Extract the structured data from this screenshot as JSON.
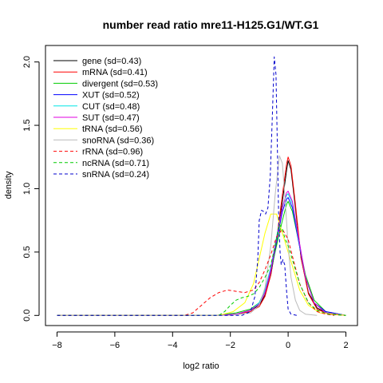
{
  "chart_data": {
    "type": "line",
    "title": "number read ratio mre11-H125.G1/WT.G1",
    "xlabel": "log2 ratio",
    "ylabel": "density",
    "xlim": [
      -8.4,
      2.4
    ],
    "ylim": [
      -0.08,
      2.13
    ],
    "xticks": [
      -8,
      -6,
      -4,
      -2,
      0,
      2
    ],
    "xtick_labels": [
      "−8",
      "−6",
      "−4",
      "−2",
      "0",
      "2"
    ],
    "yticks": [
      0.0,
      0.5,
      1.0,
      1.5,
      2.0
    ],
    "ytick_labels": [
      "0.0",
      "0.5",
      "1.0",
      "1.5",
      "2.0"
    ],
    "grid": false,
    "legend_position": "top-left",
    "series": [
      {
        "name": "gene (sd=0.43)",
        "color": "#000000",
        "dash": "solid",
        "points": [
          [
            -8,
            0
          ],
          [
            -2.5,
            0
          ],
          [
            -1.8,
            0.01
          ],
          [
            -1.3,
            0.04
          ],
          [
            -1.0,
            0.08
          ],
          [
            -0.8,
            0.16
          ],
          [
            -0.6,
            0.32
          ],
          [
            -0.4,
            0.58
          ],
          [
            -0.2,
            0.9
          ],
          [
            -0.05,
            1.15
          ],
          [
            0,
            1.22
          ],
          [
            0.1,
            1.15
          ],
          [
            0.25,
            0.85
          ],
          [
            0.45,
            0.45
          ],
          [
            0.7,
            0.18
          ],
          [
            1.0,
            0.06
          ],
          [
            1.4,
            0.01
          ],
          [
            2,
            0
          ]
        ]
      },
      {
        "name": "mRNA (sd=0.41)",
        "color": "#ff0000",
        "dash": "solid",
        "points": [
          [
            -8,
            0
          ],
          [
            -2.5,
            0
          ],
          [
            -1.8,
            0.01
          ],
          [
            -1.3,
            0.03
          ],
          [
            -1.0,
            0.07
          ],
          [
            -0.8,
            0.15
          ],
          [
            -0.6,
            0.32
          ],
          [
            -0.4,
            0.6
          ],
          [
            -0.2,
            0.95
          ],
          [
            -0.05,
            1.2
          ],
          [
            0,
            1.25
          ],
          [
            0.1,
            1.18
          ],
          [
            0.25,
            0.88
          ],
          [
            0.45,
            0.45
          ],
          [
            0.7,
            0.17
          ],
          [
            1.0,
            0.05
          ],
          [
            1.4,
            0.01
          ],
          [
            2,
            0
          ]
        ]
      },
      {
        "name": "divergent (sd=0.53)",
        "color": "#00cc00",
        "dash": "solid",
        "points": [
          [
            -8,
            0
          ],
          [
            -2.5,
            0
          ],
          [
            -1.8,
            0.02
          ],
          [
            -1.3,
            0.05
          ],
          [
            -1.0,
            0.1
          ],
          [
            -0.8,
            0.2
          ],
          [
            -0.6,
            0.35
          ],
          [
            -0.4,
            0.55
          ],
          [
            -0.2,
            0.75
          ],
          [
            -0.05,
            0.88
          ],
          [
            0,
            0.9
          ],
          [
            0.15,
            0.82
          ],
          [
            0.35,
            0.6
          ],
          [
            0.6,
            0.32
          ],
          [
            0.9,
            0.12
          ],
          [
            1.3,
            0.03
          ],
          [
            2,
            0
          ]
        ]
      },
      {
        "name": "XUT (sd=0.52)",
        "color": "#0000ff",
        "dash": "solid",
        "points": [
          [
            -8,
            0
          ],
          [
            -2.5,
            0
          ],
          [
            -1.8,
            0.01
          ],
          [
            -1.3,
            0.04
          ],
          [
            -1.0,
            0.09
          ],
          [
            -0.8,
            0.18
          ],
          [
            -0.6,
            0.35
          ],
          [
            -0.4,
            0.58
          ],
          [
            -0.2,
            0.82
          ],
          [
            -0.05,
            0.92
          ],
          [
            0,
            0.93
          ],
          [
            0.15,
            0.85
          ],
          [
            0.35,
            0.6
          ],
          [
            0.6,
            0.3
          ],
          [
            0.9,
            0.1
          ],
          [
            1.3,
            0.03
          ],
          [
            2,
            0
          ]
        ]
      },
      {
        "name": "CUT (sd=0.48)",
        "color": "#00e5e5",
        "dash": "solid",
        "points": [
          [
            -8,
            0
          ],
          [
            -2.5,
            0
          ],
          [
            -1.8,
            0.01
          ],
          [
            -1.3,
            0.04
          ],
          [
            -1.0,
            0.1
          ],
          [
            -0.8,
            0.2
          ],
          [
            -0.6,
            0.38
          ],
          [
            -0.4,
            0.62
          ],
          [
            -0.2,
            0.85
          ],
          [
            -0.05,
            0.95
          ],
          [
            0,
            0.96
          ],
          [
            0.15,
            0.88
          ],
          [
            0.35,
            0.62
          ],
          [
            0.6,
            0.3
          ],
          [
            0.9,
            0.1
          ],
          [
            1.3,
            0.02
          ],
          [
            2,
            0
          ]
        ]
      },
      {
        "name": "SUT (sd=0.47)",
        "color": "#e000e0",
        "dash": "solid",
        "points": [
          [
            -8,
            0
          ],
          [
            -2.5,
            0
          ],
          [
            -1.8,
            0.01
          ],
          [
            -1.3,
            0.04
          ],
          [
            -1.0,
            0.09
          ],
          [
            -0.8,
            0.18
          ],
          [
            -0.6,
            0.36
          ],
          [
            -0.4,
            0.6
          ],
          [
            -0.2,
            0.85
          ],
          [
            -0.05,
            0.97
          ],
          [
            0,
            0.98
          ],
          [
            0.15,
            0.9
          ],
          [
            0.35,
            0.63
          ],
          [
            0.6,
            0.3
          ],
          [
            0.9,
            0.1
          ],
          [
            1.3,
            0.02
          ],
          [
            2,
            0
          ]
        ]
      },
      {
        "name": "tRNA (sd=0.56)",
        "color": "#ffff00",
        "dash": "solid",
        "points": [
          [
            -8,
            0
          ],
          [
            -2.4,
            0
          ],
          [
            -1.9,
            0.03
          ],
          [
            -1.5,
            0.1
          ],
          [
            -1.2,
            0.25
          ],
          [
            -1.0,
            0.45
          ],
          [
            -0.8,
            0.65
          ],
          [
            -0.6,
            0.8
          ],
          [
            -0.4,
            0.8
          ],
          [
            -0.2,
            0.65
          ],
          [
            0,
            0.5
          ],
          [
            0.2,
            0.35
          ],
          [
            0.4,
            0.2
          ],
          [
            0.7,
            0.08
          ],
          [
            1.1,
            0.02
          ],
          [
            2,
            0
          ]
        ]
      },
      {
        "name": "snoRNA (sd=0.36)",
        "color": "#bbbbbb",
        "dash": "solid",
        "points": [
          [
            -8,
            0
          ],
          [
            -2,
            0
          ],
          [
            -1.3,
            0.02
          ],
          [
            -1.0,
            0.08
          ],
          [
            -0.8,
            0.22
          ],
          [
            -0.6,
            0.55
          ],
          [
            -0.45,
            0.95
          ],
          [
            -0.3,
            1.26
          ],
          [
            -0.2,
            1.2
          ],
          [
            -0.1,
            0.9
          ],
          [
            0,
            0.55
          ],
          [
            0.1,
            0.3
          ],
          [
            0.25,
            0.12
          ],
          [
            0.4,
            0.04
          ],
          [
            0.6,
            0.01
          ],
          [
            1,
            0
          ]
        ]
      },
      {
        "name": "rRNA (sd=0.96)",
        "color": "#ff0000",
        "dash": "dashed",
        "points": [
          [
            -8,
            0
          ],
          [
            -3.6,
            0
          ],
          [
            -3.3,
            0.02
          ],
          [
            -3.0,
            0.08
          ],
          [
            -2.7,
            0.14
          ],
          [
            -2.4,
            0.18
          ],
          [
            -2.1,
            0.2
          ],
          [
            -1.8,
            0.19
          ],
          [
            -1.5,
            0.18
          ],
          [
            -1.2,
            0.2
          ],
          [
            -1.0,
            0.26
          ],
          [
            -0.8,
            0.36
          ],
          [
            -0.6,
            0.48
          ],
          [
            -0.4,
            0.62
          ],
          [
            -0.2,
            0.68
          ],
          [
            0,
            0.6
          ],
          [
            0.2,
            0.42
          ],
          [
            0.4,
            0.25
          ],
          [
            0.7,
            0.1
          ],
          [
            1.0,
            0.03
          ],
          [
            1.3,
            0.01
          ],
          [
            1.6,
            0
          ]
        ]
      },
      {
        "name": "ncRNA (sd=0.71)",
        "color": "#00cc00",
        "dash": "dashed",
        "points": [
          [
            -8,
            0
          ],
          [
            -2.4,
            0
          ],
          [
            -2.2,
            0.03
          ],
          [
            -2.0,
            0.08
          ],
          [
            -1.8,
            0.12
          ],
          [
            -1.6,
            0.14
          ],
          [
            -1.4,
            0.15
          ],
          [
            -1.2,
            0.17
          ],
          [
            -1.0,
            0.22
          ],
          [
            -0.8,
            0.3
          ],
          [
            -0.6,
            0.4
          ],
          [
            -0.45,
            0.55
          ],
          [
            -0.3,
            0.72
          ],
          [
            -0.2,
            0.68
          ],
          [
            -0.1,
            0.6
          ],
          [
            0,
            0.55
          ],
          [
            0.2,
            0.4
          ],
          [
            0.4,
            0.25
          ],
          [
            0.7,
            0.1
          ],
          [
            1.0,
            0.04
          ],
          [
            1.4,
            0.01
          ],
          [
            2,
            0
          ]
        ]
      },
      {
        "name": "snRNA (sd=0.24)",
        "color": "#0000cc",
        "dash": "dashed",
        "points": [
          [
            -8,
            0
          ],
          [
            -1.6,
            0
          ],
          [
            -1.3,
            0.03
          ],
          [
            -1.15,
            0.15
          ],
          [
            -1.05,
            0.45
          ],
          [
            -1.0,
            0.75
          ],
          [
            -0.92,
            0.83
          ],
          [
            -0.85,
            0.82
          ],
          [
            -0.78,
            0.8
          ],
          [
            -0.7,
            0.85
          ],
          [
            -0.62,
            1.1
          ],
          [
            -0.55,
            1.55
          ],
          [
            -0.48,
            2.04
          ],
          [
            -0.42,
            1.9
          ],
          [
            -0.37,
            1.3
          ],
          [
            -0.33,
            0.8
          ],
          [
            -0.28,
            0.5
          ],
          [
            -0.24,
            0.4
          ],
          [
            -0.18,
            0.44
          ],
          [
            -0.12,
            0.4
          ],
          [
            -0.05,
            0.18
          ],
          [
            0,
            0.05
          ],
          [
            0.1,
            0.01
          ],
          [
            0.3,
            0
          ]
        ]
      }
    ]
  }
}
